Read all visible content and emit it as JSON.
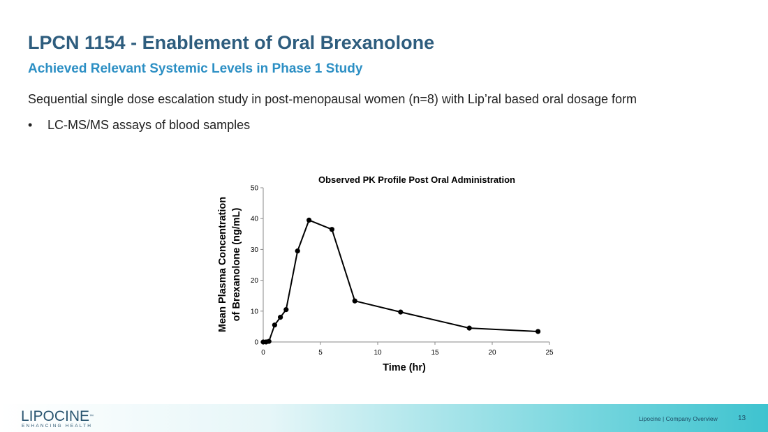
{
  "header": {
    "title": "LPCN 1154 - Enablement of Oral Brexanolone",
    "subtitle": "Achieved Relevant Systemic Levels in Phase 1 Study"
  },
  "body": {
    "intro": "Sequential single dose escalation study in post-menopausal women (n=8) with Lip’ral based oral dosage form",
    "bullets": [
      "LC-MS/MS assays of blood samples"
    ],
    "bullet_glyph": "•"
  },
  "chart_data": {
    "type": "line",
    "title": "Observed PK Profile  Post  Oral Administration",
    "xlabel": "Time (hr)",
    "ylabel_lines": [
      "Mean Plasma Concentration",
      "of  Brexanolone (ng/mL)"
    ],
    "xlim": [
      0,
      25
    ],
    "ylim": [
      0,
      50
    ],
    "xticks": [
      0,
      5,
      10,
      15,
      20,
      25
    ],
    "yticks": [
      0,
      10,
      20,
      30,
      40,
      50
    ],
    "grid": false,
    "legend": "none",
    "series": [
      {
        "name": "Brexanolone",
        "x": [
          0,
          0.25,
          0.5,
          1,
          1.5,
          2,
          3,
          4,
          6,
          8,
          12,
          18,
          24
        ],
        "y": [
          0,
          0,
          0.2,
          5.5,
          8,
          10.5,
          29.5,
          39.5,
          36.5,
          13.3,
          9.7,
          4.5,
          3.4
        ]
      }
    ]
  },
  "footer": {
    "logo_name": "LIPOCINE",
    "logo_tm": "™",
    "logo_tagline": "ENHANCING HEALTH",
    "text": "Lipocine  |  Company Overview",
    "page_number": "13"
  },
  "colors": {
    "title": "#2e5d7e",
    "subtitle": "#2c8fc4",
    "series": "#000000"
  }
}
